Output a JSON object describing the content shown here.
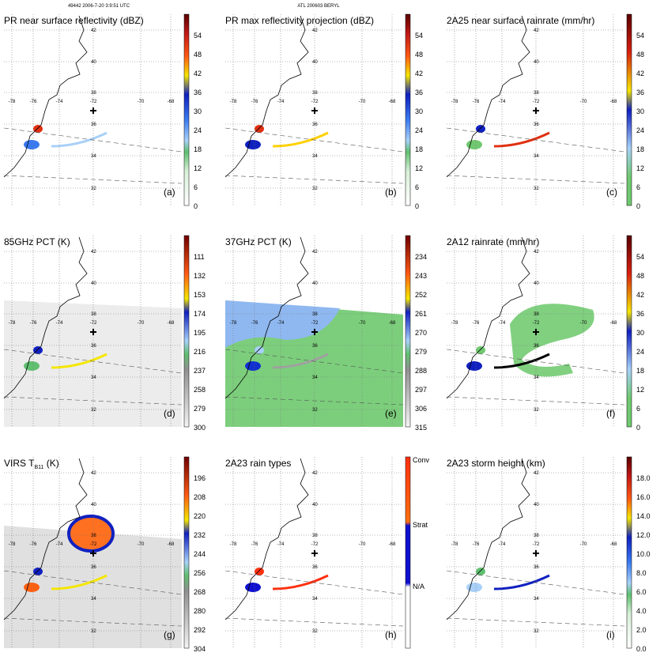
{
  "header": {
    "left": "49442 2006-7-20 3:9:51 UTC",
    "center": "ATL 200603 BERYL"
  },
  "map_labels": {
    "lat": [
      "42",
      "40",
      "38",
      "36",
      "34",
      "32"
    ],
    "lon": [
      "-78",
      "-76",
      "-74",
      "-72",
      "-70",
      "-68"
    ]
  },
  "panels": [
    {
      "title": "PR near surface reflectivity (dBZ)",
      "label": "(a)",
      "colorbar": [
        "54",
        "48",
        "42",
        "36",
        "30",
        "24",
        "18",
        "12",
        "6",
        "0"
      ]
    },
    {
      "title": "PR max reflectivity projection (dBZ)",
      "label": "(b)",
      "colorbar": [
        "54",
        "48",
        "42",
        "36",
        "30",
        "24",
        "18",
        "12",
        "6",
        "0"
      ]
    },
    {
      "title": "2A25 near surface rainrate (mm/hr)",
      "label": "(c)",
      "colorbar": [
        "54",
        "48",
        "42",
        "36",
        "30",
        "24",
        "18",
        "12",
        "6",
        "0"
      ]
    },
    {
      "title": "85GHz PCT (K)",
      "label": "(d)",
      "colorbar": [
        "111",
        "132",
        "153",
        "174",
        "195",
        "216",
        "237",
        "258",
        "279",
        "300"
      ]
    },
    {
      "title": "37GHz PCT (K)",
      "label": "(e)",
      "colorbar": [
        "234",
        "243",
        "252",
        "261",
        "270",
        "279",
        "288",
        "297",
        "306",
        "315"
      ]
    },
    {
      "title": "2A12 rainrate (mm/hr)",
      "label": "(f)",
      "colorbar": [
        "54",
        "48",
        "42",
        "36",
        "30",
        "24",
        "18",
        "12",
        "6",
        "0"
      ]
    },
    {
      "title": "VIRS T",
      "title_sub": "B11",
      "title_end": " (K)",
      "label": "(g)",
      "colorbar": [
        "196",
        "208",
        "220",
        "232",
        "244",
        "256",
        "268",
        "280",
        "292",
        "304"
      ]
    },
    {
      "title": "2A23 rain types",
      "label": "(h)",
      "colorbar": [
        "Conv",
        "Strat",
        "N/A"
      ]
    },
    {
      "title": "2A23 storm height (km)",
      "label": "(i)",
      "colorbar": [
        "18.0",
        "16.0",
        "14.0",
        "12.0",
        "10.0",
        "8.0",
        "6.0",
        "4.0",
        "2.0",
        "0.0"
      ]
    }
  ]
}
